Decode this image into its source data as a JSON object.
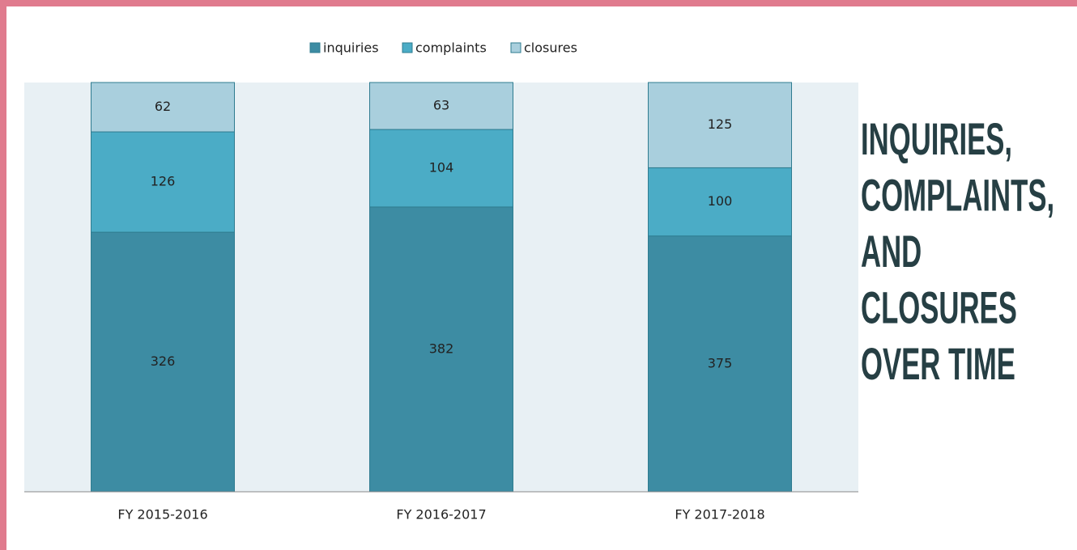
{
  "chart_data": {
    "type": "bar",
    "stacked": true,
    "percent_stacked": true,
    "title": [
      "INQUIRIES,",
      "COMPLAINTS,",
      "AND",
      "CLOSURES",
      "OVER TIME"
    ],
    "categories": [
      "FY 2015-2016",
      "FY 2016-2017",
      "FY 2017-2018"
    ],
    "series": [
      {
        "name": "inquiries",
        "color": "#3d8ca3",
        "values": [
          326,
          382,
          375
        ]
      },
      {
        "name": "complaints",
        "color": "#4bacc6",
        "values": [
          126,
          104,
          100
        ]
      },
      {
        "name": "closures",
        "color": "#a9cfdd",
        "values": [
          62,
          63,
          125
        ]
      }
    ],
    "legend": "top"
  }
}
